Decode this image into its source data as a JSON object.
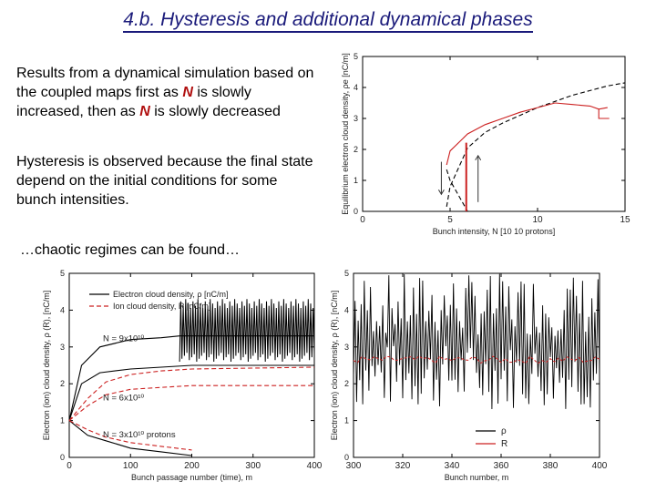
{
  "slide": {
    "title": "4.b. Hysteresis and additional dynamical phases",
    "para1": {
      "t1": "Results from a dynamical simulation based on the coupled maps first as ",
      "n1": "N",
      "t2": " is slowly increased, then as ",
      "n2": "N",
      "t3": " is slowly decreased"
    },
    "para2": "Hysteresis is observed because the final state depend on the initial conditions for some bunch intensities.",
    "para3": "…chaotic regimes can be found…"
  },
  "colors": {
    "title": "#1a1a7a",
    "electron": "#000000",
    "ion": "#cc2020",
    "highlight": "#b01010"
  },
  "chart_data": [
    {
      "type": "line",
      "xlabel": "Bunch intensity, N [10 10 protons]",
      "ylabel": "Equilibrium electron cloud density, ρe [nC/m]",
      "xlim": [
        0,
        15
      ],
      "ylim": [
        0,
        5
      ],
      "xticks": [
        "0",
        "5",
        "10",
        "15"
      ],
      "yticks": [
        "0",
        "1",
        "2",
        "3",
        "4",
        "5"
      ],
      "annotations": [
        "↓ at N≈4.5",
        "↑ at N≈6.3"
      ],
      "series": [
        {
          "style": "black dashed",
          "x": [
            4.8,
            5,
            6,
            7,
            8,
            9,
            10,
            11,
            12,
            13,
            14,
            15
          ],
          "y": [
            0.15,
            0.8,
            2.05,
            2.55,
            2.85,
            3.1,
            3.35,
            3.55,
            3.75,
            3.9,
            4.05,
            4.15
          ]
        },
        {
          "style": "black dashed",
          "x": [
            4.8,
            5,
            5.5,
            6.0
          ],
          "y": [
            1.35,
            1.0,
            0.5,
            0
          ]
        },
        {
          "style": "red solid",
          "x": [
            4.8,
            5,
            6,
            7,
            8,
            9,
            10,
            11,
            12,
            13,
            13.5,
            14
          ],
          "y": [
            1.5,
            1.95,
            2.5,
            2.8,
            3.0,
            3.2,
            3.35,
            3.5,
            3.45,
            3.4,
            3.3,
            3.35
          ]
        },
        {
          "style": "red solid",
          "x": [
            13.5,
            13.5,
            14.1
          ],
          "y": [
            3.3,
            3.0,
            3.0
          ]
        },
        {
          "style": "red solid",
          "x": [
            5.9,
            5.9,
            5.95,
            5.95
          ],
          "y": [
            0,
            2.2,
            2.2,
            0
          ]
        }
      ]
    },
    {
      "type": "line",
      "xlabel": "Bunch passage number (time), m",
      "ylabel": "Electron (ion) cloud density, ρ (R), [nC/m]",
      "xlim": [
        0,
        400
      ],
      "ylim": [
        0,
        5
      ],
      "xticks": [
        "0",
        "100",
        "200",
        "300",
        "400"
      ],
      "yticks": [
        "0",
        "1",
        "2",
        "3",
        "4",
        "5"
      ],
      "legend": [
        "Electron cloud density, ρ [nC/m]",
        "Ion cloud density, R [nC/m]"
      ],
      "labels": [
        "N = 9x10¹⁰",
        "N = 6x10¹⁰",
        "N = 3x10¹⁰ protons"
      ],
      "series": [
        {
          "name": "Electron cloud density, ρ [nC/m]",
          "style": "black",
          "x": [
            0,
            20,
            50,
            100,
            150,
            180,
            400
          ],
          "y": [
            1.0,
            2.5,
            3.0,
            3.2,
            3.25,
            3.3,
            3.3
          ]
        },
        {
          "name": "Electron cloud density, ρ [nC/m]",
          "style": "black",
          "x": [
            0,
            20,
            50,
            100,
            150,
            200,
            400
          ],
          "y": [
            1.0,
            2.0,
            2.3,
            2.4,
            2.45,
            2.5,
            2.5
          ]
        },
        {
          "name": "Electron cloud density, ρ [nC/m]",
          "style": "black",
          "x": [
            0,
            30,
            60,
            100,
            150,
            200
          ],
          "y": [
            1.0,
            0.6,
            0.45,
            0.25,
            0.15,
            0.05
          ]
        },
        {
          "name": "Ion cloud density, R [nC/m]",
          "style": "red dashed",
          "x": [
            0,
            30,
            60,
            100,
            150,
            200,
            400
          ],
          "y": [
            1.0,
            1.6,
            2.05,
            2.25,
            2.35,
            2.4,
            2.45
          ]
        },
        {
          "name": "Ion cloud density, R [nC/m]",
          "style": "red dashed",
          "x": [
            0,
            30,
            60,
            100,
            150,
            200,
            400
          ],
          "y": [
            1.0,
            1.4,
            1.7,
            1.85,
            1.9,
            1.95,
            1.95
          ]
        },
        {
          "name": "Ion cloud density, R [nC/m]",
          "style": "red dashed",
          "x": [
            0,
            30,
            60,
            100,
            150,
            200
          ],
          "y": [
            1.0,
            0.75,
            0.55,
            0.4,
            0.3,
            0.2
          ]
        }
      ],
      "oscillation": {
        "x": [
          180,
          400
        ],
        "y_range": [
          2.6,
          4.3
        ]
      }
    },
    {
      "type": "line",
      "xlabel": "Bunch number, m",
      "ylabel": "Electron (ion) cloud density, ρ (R), [nC/m]",
      "xlim": [
        300,
        400
      ],
      "ylim": [
        0,
        5
      ],
      "xticks": [
        "300",
        "320",
        "340",
        "360",
        "380",
        "400"
      ],
      "yticks": [
        "0",
        "1",
        "2",
        "3",
        "4",
        "5"
      ],
      "legend": [
        "ρ",
        "R"
      ],
      "series": [
        {
          "name": "ρ",
          "style": "black chaotic",
          "y_range": [
            1.3,
            5.0
          ]
        },
        {
          "name": "R",
          "style": "red",
          "y_mean": 2.65,
          "y_range": [
            2.55,
            2.75
          ]
        }
      ]
    }
  ]
}
